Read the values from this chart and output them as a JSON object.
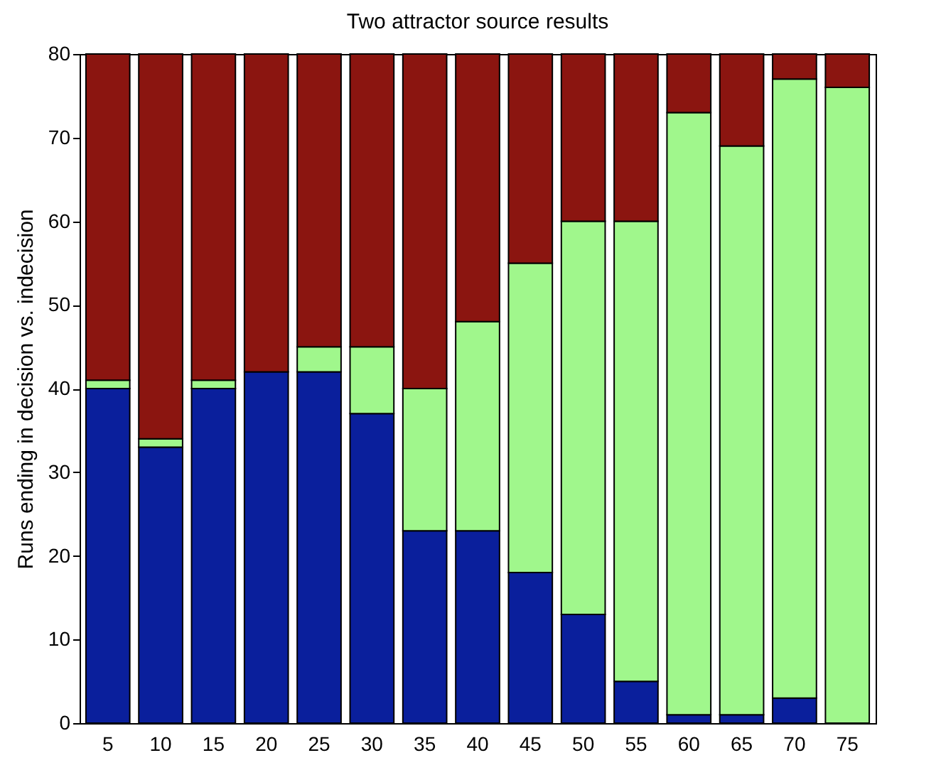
{
  "chart_data": {
    "type": "bar",
    "title": "Two attractor source results",
    "ylabel": "Runs ending in decision vs. indecision",
    "categories": [
      "5",
      "10",
      "15",
      "20",
      "25",
      "30",
      "35",
      "40",
      "45",
      "50",
      "55",
      "60",
      "65",
      "70",
      "75"
    ],
    "stacked": true,
    "ylim": [
      0,
      80
    ],
    "yticks": [
      0,
      10,
      20,
      30,
      40,
      50,
      60,
      70,
      80
    ],
    "grid": false,
    "legend": false,
    "series": [
      {
        "color": "#0a1f9c",
        "values": [
          40,
          33,
          40,
          42,
          42,
          37,
          23,
          23,
          18,
          13,
          5,
          1,
          1,
          3,
          0
        ]
      },
      {
        "color": "#a0f78c",
        "values": [
          1,
          1,
          1,
          0,
          3,
          8,
          17,
          25,
          37,
          47,
          55,
          72,
          68,
          74,
          76
        ]
      },
      {
        "color": "#8b1510",
        "values": [
          39,
          46,
          39,
          38,
          35,
          35,
          40,
          32,
          25,
          20,
          20,
          7,
          11,
          3,
          4
        ]
      }
    ]
  }
}
